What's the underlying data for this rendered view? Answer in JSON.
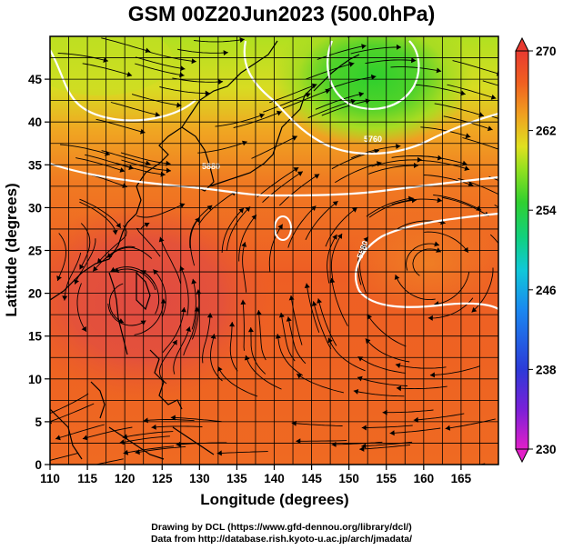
{
  "title": "GSM 00Z20Jun2023 (500.0hPa)",
  "credit_line1": "Drawing by DCL (https://www.gfd-dennou.org/library/dcl/)",
  "credit_line2": "Data from http://database.rish.kyoto-u.ac.jp/arch/jmadata/",
  "x_axis": {
    "label": "Longitude (degrees)",
    "range": [
      110,
      170
    ],
    "ticks": [
      "110",
      "115",
      "120",
      "125",
      "130",
      "135",
      "140",
      "145",
      "150",
      "155",
      "160",
      "165"
    ]
  },
  "y_axis": {
    "label": "Latitude  (degrees)",
    "range": [
      0,
      50
    ],
    "ticks": [
      "0",
      "5",
      "10",
      "15",
      "20",
      "25",
      "30",
      "35",
      "40",
      "45"
    ]
  },
  "colorbar": {
    "ticks": [
      "230",
      "238",
      "246",
      "254",
      "262",
      "270"
    ],
    "colors": [
      "#e21fc8",
      "#7a20d8",
      "#2c3ad8",
      "#1a88f0",
      "#10c8d8",
      "#10d080",
      "#30d030",
      "#90e020",
      "#e0e020",
      "#f0a020",
      "#f06020",
      "#e83a30"
    ]
  },
  "contour_labels": [
    "5880",
    "5880",
    "5760",
    "5880"
  ],
  "colors": {
    "warm": "#ee5a22",
    "hot": "#e2503a",
    "cool": "#3ad23a",
    "contour": "#ffffff",
    "coast": "#000000"
  }
}
